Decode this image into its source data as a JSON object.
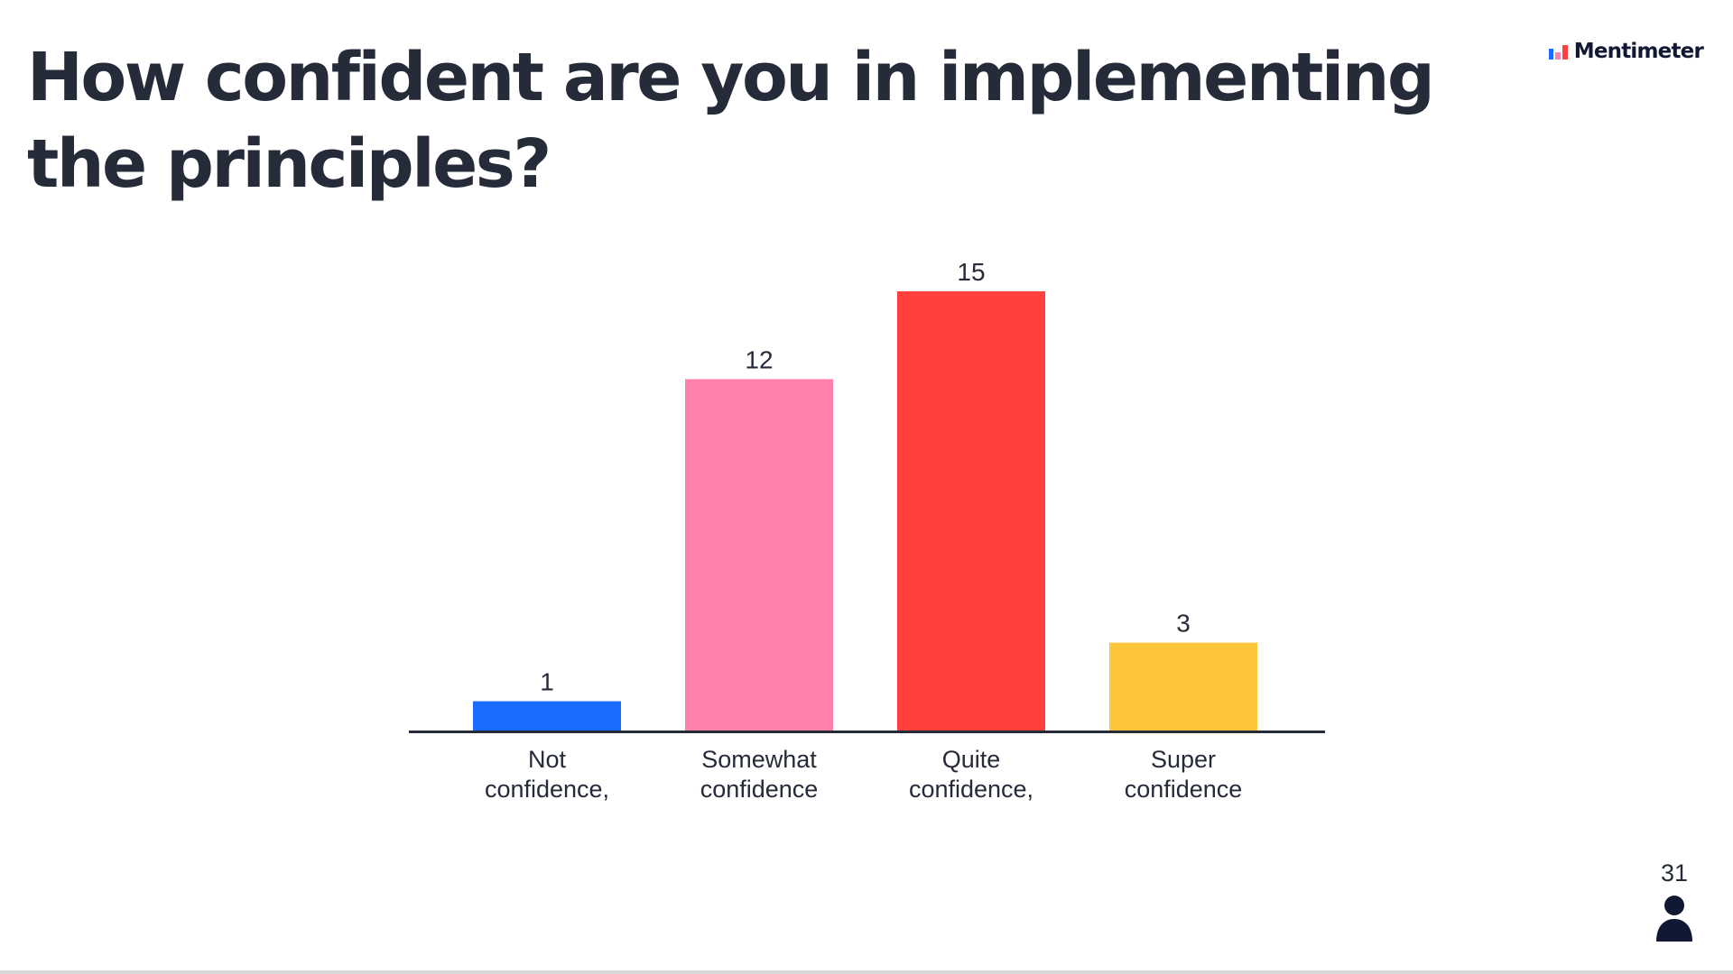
{
  "slide": {
    "title": "How confident are you in implementing the principles?"
  },
  "brand": {
    "name": "Mentimeter",
    "logo_icon": "mentimeter-logo-icon",
    "logo_colors": [
      "#196cff",
      "#ff80ab",
      "#ff403d"
    ]
  },
  "participants": {
    "count": "31",
    "icon": "person-icon"
  },
  "chart_data": {
    "type": "bar",
    "title": "",
    "xlabel": "",
    "ylabel": "",
    "categories": [
      [
        "Not",
        "confidence,"
      ],
      [
        "Somewhat",
        "confidence"
      ],
      [
        "Quite",
        "confidence,"
      ],
      [
        "Super",
        "confidence"
      ]
    ],
    "values": [
      1,
      12,
      15,
      3
    ],
    "colors": [
      "#196cff",
      "#ff80ab",
      "#ff403d",
      "#ffc53a"
    ],
    "ylim": [
      0,
      15
    ],
    "grid": false,
    "legend": "none",
    "show_value_labels": true
  }
}
